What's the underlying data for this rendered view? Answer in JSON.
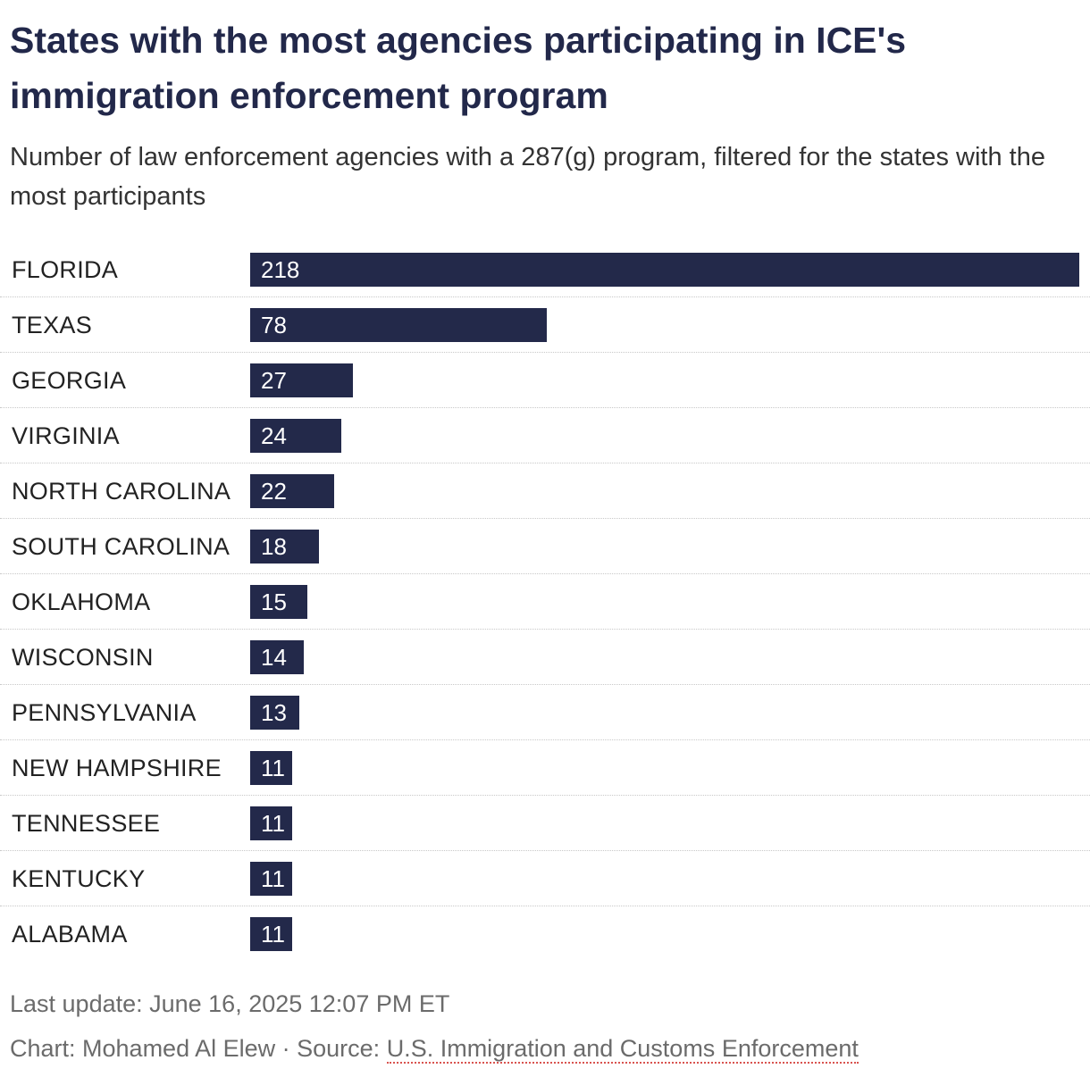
{
  "header": {
    "title": "States with the most agencies participating in ICE's immigration enforcement program",
    "subtitle": "Number of law enforcement agencies with a 287(g) program, filtered for the states with the most participants"
  },
  "chart_data": {
    "type": "bar",
    "orientation": "horizontal",
    "title": "States with the most agencies participating in ICE's immigration enforcement program",
    "subtitle": "Number of law enforcement agencies with a 287(g) program, filtered for the states with the most participants",
    "categories": [
      "FLORIDA",
      "TEXAS",
      "GEORGIA",
      "VIRGINIA",
      "NORTH CAROLINA",
      "SOUTH CAROLINA",
      "OKLAHOMA",
      "WISCONSIN",
      "PENNSYLVANIA",
      "NEW HAMPSHIRE",
      "TENNESSEE",
      "KENTUCKY",
      "ALABAMA"
    ],
    "values": [
      218,
      78,
      27,
      24,
      22,
      18,
      15,
      14,
      13,
      11,
      11,
      11,
      11
    ],
    "xlim": [
      0,
      218
    ],
    "xlabel": "",
    "ylabel": "",
    "bar_color": "#23294a",
    "value_label_color": "#ffffff"
  },
  "footer": {
    "last_update": "Last update: June 16, 2025 12:07 PM ET",
    "credit_prefix": "Chart: Mohamed Al Elew · Source: ",
    "source_link": "U.S. Immigration and Customs Enforcement"
  }
}
